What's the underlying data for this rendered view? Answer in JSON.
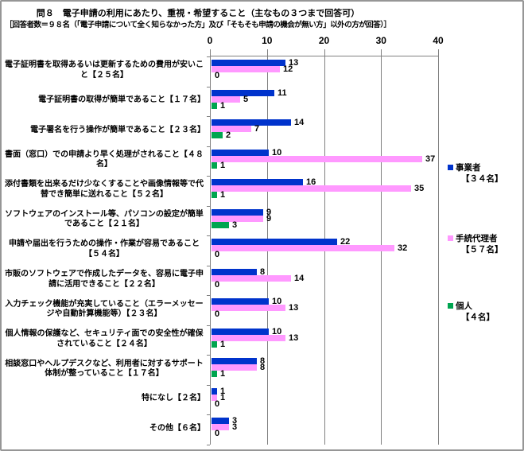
{
  "title": "問８　電子申請の利用にあたり、重視・希望すること（主なもの３つまで回答可）",
  "subtitle": "［回答者数＝９８名（「電子申請について全く知らなかった方」及び「そもそも申請の機会が無い方」以外の方が回答）］",
  "axis": {
    "ticks": [
      0,
      10,
      20,
      30,
      40
    ],
    "max": 40
  },
  "colors": {
    "bar_blue": "#0033CC",
    "bar_pink": "#FF99FF",
    "bar_green": "#00A550",
    "grid": "#808080"
  },
  "legend": [
    {
      "name": "事業者",
      "count": "【３４名】",
      "color": "#0033CC"
    },
    {
      "name": "手続代理者",
      "count": "【５７名】",
      "color": "#FF99FF"
    },
    {
      "name": "個人",
      "count": "【４名】",
      "color": "#00A550"
    }
  ],
  "chart_data": {
    "type": "bar",
    "orientation": "horizontal",
    "title": "問８　電子申請の利用にあたり、重視・希望すること（主なもの３つまで回答可）",
    "subtitle": "［回答者数＝９８名（「電子申請について全く知らなかった方」及び「そもそも申請の機会が無い方」以外の方が回答）］",
    "xlim": [
      0,
      40
    ],
    "xticks": [
      0,
      10,
      20,
      30,
      40
    ],
    "grid": true,
    "legend_position": "right",
    "categories": [
      "電子証明書を取得あるいは更新するための費用が安いこと【２５名】",
      "電子証明書の取得が簡単であること【１７名】",
      "電子署名を行う操作が簡単であること【２３名】",
      "書面（窓口）での申請より早く処理がされること【４８名】",
      "添付書類を出来るだけ少なくすることや画像情報等で代替でき簡単に送れること【５２名】",
      "ソフトウェアのインストール等、パソコンの設定が簡単であること【２１名】",
      "申請や届出を行うための操作・作業が容易であること【５４名】",
      "市販のソフトウェアで作成したデータを、容易に電子申請に活用できること【２２名】",
      "入力チェック機能が充実していること（エラーメッセージや自動計算機能等）【２３名】",
      "個人情報の保護など、セキュリティ面での安全性が確保されていること【２４名】",
      "相談窓口やヘルプデスクなど、利用者に対するサポート体制が整っていること【１７名】",
      "特になし【２名】",
      "その他【６名】"
    ],
    "series": [
      {
        "name": "事業者【34名】",
        "color": "#0033CC",
        "values": [
          13,
          11,
          14,
          10,
          16,
          9,
          22,
          8,
          10,
          10,
          8,
          1,
          3
        ]
      },
      {
        "name": "手続代理者【57名】",
        "color": "#FF99FF",
        "values": [
          12,
          5,
          7,
          37,
          35,
          9,
          32,
          14,
          13,
          13,
          8,
          1,
          3
        ]
      },
      {
        "name": "個人【4名】",
        "color": "#00A550",
        "values": [
          0,
          1,
          2,
          1,
          1,
          3,
          0,
          0,
          0,
          1,
          1,
          0,
          0
        ]
      }
    ]
  }
}
